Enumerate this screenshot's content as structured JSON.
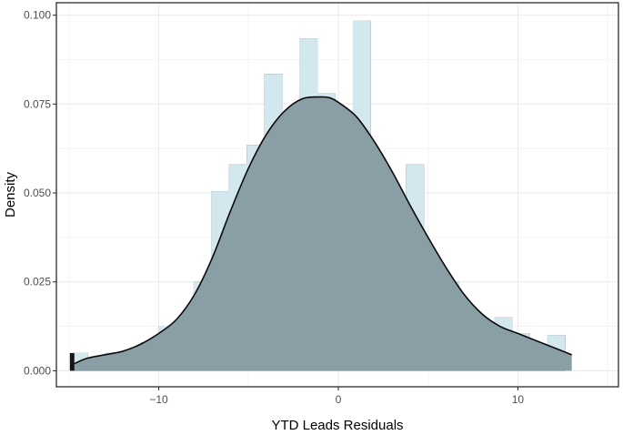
{
  "chart_data": {
    "type": "histogram",
    "xlabel": "YTD Leads Residuals",
    "ylabel": "Density",
    "xlim": [
      -15.7,
      15.6
    ],
    "ylim": [
      -0.0045,
      0.1035
    ],
    "x_ticks": [
      -10,
      0,
      10
    ],
    "x_tick_labels": [
      "−10",
      "0",
      "10"
    ],
    "y_ticks": [
      0.0,
      0.025,
      0.05,
      0.075,
      0.1
    ],
    "y_tick_labels": [
      "0.000",
      "0.025",
      "0.050",
      "0.075",
      "0.100"
    ],
    "grid": true,
    "bins": {
      "start": -14.95,
      "width": 0.985,
      "densities": [
        0.005,
        0.002,
        0.005,
        0.003,
        0.008,
        0.0125,
        0.01,
        0.025,
        0.0505,
        0.058,
        0.0635,
        0.0835,
        0.071,
        0.0935,
        0.078,
        0.063,
        0.0985,
        0.0505,
        0.038,
        0.058,
        0.0305,
        0.025,
        0.015,
        0.0075,
        0.015,
        0.0105,
        0.0075,
        0.01
      ]
    },
    "density_curve": {
      "x": [
        -14.7,
        -14.0,
        -13.0,
        -12.0,
        -11.0,
        -10.0,
        -9.0,
        -8.0,
        -7.0,
        -6.0,
        -5.0,
        -4.0,
        -3.0,
        -2.0,
        -1.0,
        -0.5,
        0.0,
        1.0,
        2.0,
        3.0,
        4.0,
        5.0,
        6.0,
        7.0,
        8.0,
        9.0,
        10.0,
        11.0,
        12.0,
        13.0
      ],
      "y": [
        0.002,
        0.0035,
        0.0045,
        0.0055,
        0.0075,
        0.0105,
        0.0145,
        0.0215,
        0.032,
        0.045,
        0.057,
        0.0665,
        0.073,
        0.0765,
        0.077,
        0.0768,
        0.0755,
        0.0715,
        0.0645,
        0.056,
        0.0465,
        0.0375,
        0.029,
        0.0215,
        0.016,
        0.0125,
        0.0105,
        0.0085,
        0.0065,
        0.0045
      ]
    },
    "colors": {
      "bar": "#141414",
      "density_fill": "#8a9ea6",
      "light_fill": "#d2e7ee",
      "curve": "#0a0a0a",
      "grid": "#ebebeb",
      "frame": "#1a1a1a"
    }
  }
}
